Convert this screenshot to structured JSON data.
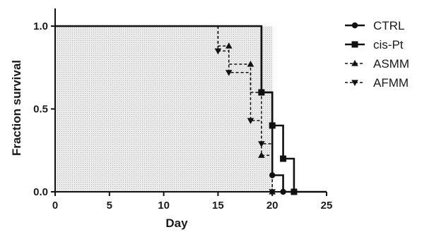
{
  "chart_data": {
    "type": "line",
    "subtype": "kaplan-meier step",
    "xlabel": "Day",
    "ylabel": "Fraction survival",
    "xlim": [
      0,
      25
    ],
    "ylim": [
      0,
      1
    ],
    "x_ticks": [
      0,
      5,
      10,
      15,
      20,
      25
    ],
    "y_ticks": [
      0.0,
      0.5,
      1.0
    ],
    "x_tick_labels": [
      "0",
      "5",
      "10",
      "15",
      "20",
      "25"
    ],
    "y_tick_labels": [
      "0.0",
      "0.5",
      "1.0"
    ],
    "grid": false,
    "shaded_region": {
      "x": [
        0,
        20
      ],
      "y": [
        0,
        1
      ],
      "pattern": "dotted"
    },
    "legend_position": "right",
    "series": [
      {
        "name": "CTRL",
        "marker": "circle",
        "line": "solid",
        "steps": [
          [
            0,
            1.0
          ],
          [
            19,
            1.0
          ],
          [
            19,
            0.6
          ],
          [
            20,
            0.6
          ],
          [
            20,
            0.1
          ],
          [
            21,
            0.1
          ],
          [
            21,
            0.0
          ],
          [
            25,
            0.0
          ]
        ],
        "markers": [
          [
            20,
            0.1
          ],
          [
            21,
            0.0
          ]
        ]
      },
      {
        "name": "cis-Pt",
        "marker": "square",
        "line": "solid",
        "steps": [
          [
            19,
            1.0
          ],
          [
            19,
            0.6
          ],
          [
            20,
            0.6
          ],
          [
            20,
            0.4
          ],
          [
            21,
            0.4
          ],
          [
            21,
            0.2
          ],
          [
            22,
            0.2
          ],
          [
            22,
            0.0
          ]
        ],
        "markers": [
          [
            19,
            0.6
          ],
          [
            20,
            0.4
          ],
          [
            21,
            0.2
          ],
          [
            22,
            0.0
          ]
        ]
      },
      {
        "name": "ASMM",
        "marker": "triangle-up",
        "line": "dashed",
        "steps": [
          [
            15,
            1.0
          ],
          [
            15,
            0.88
          ],
          [
            16,
            0.88
          ],
          [
            16,
            0.77
          ],
          [
            18,
            0.77
          ],
          [
            18,
            0.6
          ],
          [
            19,
            0.6
          ],
          [
            19,
            0.22
          ],
          [
            20,
            0.22
          ],
          [
            20,
            0.0
          ]
        ],
        "markers": [
          [
            16,
            0.88
          ],
          [
            18,
            0.77
          ],
          [
            19,
            0.22
          ],
          [
            20,
            0.0
          ]
        ]
      },
      {
        "name": "AFMM",
        "marker": "triangle-down",
        "line": "dashed",
        "steps": [
          [
            15,
            1.0
          ],
          [
            15,
            0.85
          ],
          [
            16,
            0.85
          ],
          [
            16,
            0.72
          ],
          [
            18,
            0.72
          ],
          [
            18,
            0.43
          ],
          [
            19,
            0.43
          ],
          [
            19,
            0.29
          ],
          [
            20,
            0.29
          ],
          [
            20,
            0.0
          ]
        ],
        "markers": [
          [
            15,
            0.85
          ],
          [
            16,
            0.72
          ],
          [
            18,
            0.43
          ],
          [
            19,
            0.29
          ],
          [
            20,
            0.0
          ]
        ]
      }
    ]
  }
}
